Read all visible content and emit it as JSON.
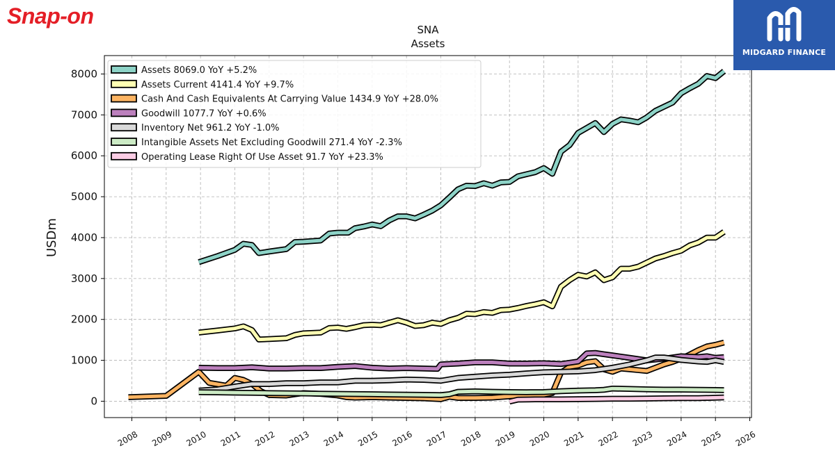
{
  "brand": {
    "name": "Snap-on",
    "finance": "MIDGARD FINANCE"
  },
  "colors": {
    "assets": "#8dd3c7",
    "assets_current": "#ffffb3",
    "cash": "#fdb462",
    "goodwill": "#bc80bd",
    "inventory": "#d9d9d9",
    "intangible": "#ccebc5",
    "lease": "#fccde5",
    "brand_bg": "#2a5aad",
    "logo_red": "#e41e26"
  },
  "chart_data": {
    "type": "line",
    "title": "SNA",
    "subtitle": "Assets",
    "xlabel": "",
    "ylabel": "USDm",
    "xlim": [
      2007.2,
      2026.05
    ],
    "ylim": [
      -400,
      8450
    ],
    "yticks": [
      0,
      1000,
      2000,
      3000,
      4000,
      5000,
      6000,
      7000,
      8000
    ],
    "xticks": [
      "2008",
      "2009",
      "2010",
      "2011",
      "2012",
      "2013",
      "2014",
      "2015",
      "2016",
      "2017",
      "2018",
      "2019",
      "2020",
      "2021",
      "2022",
      "2023",
      "2024",
      "2025",
      "2026"
    ],
    "grid": true,
    "legend_position": "top-left",
    "series": [
      {
        "name": "Assets",
        "legend": "Assets  8069.0 YoY +5.2%",
        "color_key": "assets",
        "points": [
          [
            2009.95,
            3400
          ],
          [
            2010.5,
            3550
          ],
          [
            2011.0,
            3700
          ],
          [
            2011.25,
            3850
          ],
          [
            2011.5,
            3820
          ],
          [
            2011.7,
            3620
          ],
          [
            2012.0,
            3660
          ],
          [
            2012.5,
            3720
          ],
          [
            2012.75,
            3890
          ],
          [
            2013.0,
            3900
          ],
          [
            2013.5,
            3930
          ],
          [
            2013.75,
            4100
          ],
          [
            2014.0,
            4120
          ],
          [
            2014.3,
            4120
          ],
          [
            2014.5,
            4230
          ],
          [
            2014.75,
            4270
          ],
          [
            2015.0,
            4320
          ],
          [
            2015.25,
            4280
          ],
          [
            2015.5,
            4420
          ],
          [
            2015.75,
            4520
          ],
          [
            2016.0,
            4520
          ],
          [
            2016.25,
            4470
          ],
          [
            2016.5,
            4560
          ],
          [
            2016.75,
            4660
          ],
          [
            2017.0,
            4790
          ],
          [
            2017.25,
            4980
          ],
          [
            2017.5,
            5180
          ],
          [
            2017.75,
            5270
          ],
          [
            2018.0,
            5260
          ],
          [
            2018.25,
            5330
          ],
          [
            2018.5,
            5270
          ],
          [
            2018.75,
            5350
          ],
          [
            2019.0,
            5360
          ],
          [
            2019.25,
            5500
          ],
          [
            2019.5,
            5550
          ],
          [
            2019.75,
            5600
          ],
          [
            2020.0,
            5700
          ],
          [
            2020.25,
            5560
          ],
          [
            2020.5,
            6100
          ],
          [
            2020.75,
            6260
          ],
          [
            2021.0,
            6560
          ],
          [
            2021.25,
            6680
          ],
          [
            2021.5,
            6800
          ],
          [
            2021.75,
            6580
          ],
          [
            2022.0,
            6780
          ],
          [
            2022.25,
            6890
          ],
          [
            2022.5,
            6860
          ],
          [
            2022.75,
            6820
          ],
          [
            2023.0,
            6940
          ],
          [
            2023.25,
            7100
          ],
          [
            2023.5,
            7200
          ],
          [
            2023.75,
            7300
          ],
          [
            2024.0,
            7530
          ],
          [
            2024.25,
            7650
          ],
          [
            2024.5,
            7760
          ],
          [
            2024.75,
            7950
          ],
          [
            2025.0,
            7900
          ],
          [
            2025.25,
            8069
          ]
        ]
      },
      {
        "name": "Assets Current",
        "legend": "Assets Current  4141.4 YoY +9.7%",
        "color_key": "assets_current",
        "points": [
          [
            2009.95,
            1680
          ],
          [
            2010.5,
            1730
          ],
          [
            2011.0,
            1780
          ],
          [
            2011.25,
            1830
          ],
          [
            2011.5,
            1740
          ],
          [
            2011.7,
            1510
          ],
          [
            2012.0,
            1520
          ],
          [
            2012.5,
            1540
          ],
          [
            2012.75,
            1620
          ],
          [
            2013.0,
            1660
          ],
          [
            2013.5,
            1680
          ],
          [
            2013.75,
            1790
          ],
          [
            2014.0,
            1800
          ],
          [
            2014.25,
            1770
          ],
          [
            2014.5,
            1810
          ],
          [
            2014.75,
            1860
          ],
          [
            2015.0,
            1870
          ],
          [
            2015.25,
            1860
          ],
          [
            2015.5,
            1920
          ],
          [
            2015.75,
            1980
          ],
          [
            2016.0,
            1920
          ],
          [
            2016.25,
            1840
          ],
          [
            2016.5,
            1860
          ],
          [
            2016.75,
            1920
          ],
          [
            2017.0,
            1890
          ],
          [
            2017.25,
            1980
          ],
          [
            2017.5,
            2040
          ],
          [
            2017.75,
            2140
          ],
          [
            2018.0,
            2130
          ],
          [
            2018.25,
            2180
          ],
          [
            2018.5,
            2160
          ],
          [
            2018.75,
            2230
          ],
          [
            2019.0,
            2240
          ],
          [
            2019.25,
            2280
          ],
          [
            2019.5,
            2330
          ],
          [
            2019.75,
            2370
          ],
          [
            2020.0,
            2420
          ],
          [
            2020.25,
            2320
          ],
          [
            2020.5,
            2800
          ],
          [
            2020.75,
            2960
          ],
          [
            2021.0,
            3090
          ],
          [
            2021.25,
            3050
          ],
          [
            2021.5,
            3150
          ],
          [
            2021.75,
            2960
          ],
          [
            2022.0,
            3030
          ],
          [
            2022.25,
            3240
          ],
          [
            2022.5,
            3240
          ],
          [
            2022.75,
            3290
          ],
          [
            2023.0,
            3390
          ],
          [
            2023.25,
            3490
          ],
          [
            2023.5,
            3550
          ],
          [
            2023.75,
            3620
          ],
          [
            2024.0,
            3680
          ],
          [
            2024.25,
            3810
          ],
          [
            2024.5,
            3880
          ],
          [
            2024.75,
            4000
          ],
          [
            2025.0,
            4000
          ],
          [
            2025.25,
            4141
          ]
        ]
      },
      {
        "name": "Cash And Cash Equivalents At Carrying Value",
        "legend": "Cash And Cash Equivalents At Carrying Value  1434.9 YoY +28.0%",
        "color_key": "cash",
        "points": [
          [
            2007.9,
            100
          ],
          [
            2009.0,
            130
          ],
          [
            2009.95,
            720
          ],
          [
            2010.25,
            450
          ],
          [
            2010.75,
            380
          ],
          [
            2011.0,
            570
          ],
          [
            2011.25,
            520
          ],
          [
            2011.5,
            420
          ],
          [
            2011.75,
            250
          ],
          [
            2012.0,
            150
          ],
          [
            2012.5,
            140
          ],
          [
            2013.0,
            200
          ],
          [
            2013.5,
            180
          ],
          [
            2014.0,
            140
          ],
          [
            2014.25,
            100
          ],
          [
            2014.5,
            90
          ],
          [
            2015.0,
            100
          ],
          [
            2015.5,
            90
          ],
          [
            2016.0,
            80
          ],
          [
            2016.5,
            70
          ],
          [
            2017.0,
            50
          ],
          [
            2017.25,
            110
          ],
          [
            2017.5,
            80
          ],
          [
            2018.0,
            80
          ],
          [
            2018.5,
            90
          ],
          [
            2019.0,
            120
          ],
          [
            2019.5,
            150
          ],
          [
            2020.0,
            160
          ],
          [
            2020.25,
            200
          ],
          [
            2020.5,
            700
          ],
          [
            2020.75,
            840
          ],
          [
            2021.0,
            870
          ],
          [
            2021.25,
            950
          ],
          [
            2021.5,
            980
          ],
          [
            2021.75,
            780
          ],
          [
            2022.0,
            720
          ],
          [
            2022.25,
            800
          ],
          [
            2022.5,
            780
          ],
          [
            2022.75,
            760
          ],
          [
            2023.0,
            740
          ],
          [
            2023.25,
            820
          ],
          [
            2023.5,
            900
          ],
          [
            2023.75,
            960
          ],
          [
            2024.0,
            1040
          ],
          [
            2024.25,
            1140
          ],
          [
            2024.5,
            1250
          ],
          [
            2024.75,
            1340
          ],
          [
            2025.0,
            1380
          ],
          [
            2025.25,
            1435
          ]
        ]
      },
      {
        "name": "Goodwill",
        "legend": "Goodwill  1077.7 YoY +0.6%",
        "color_key": "goodwill",
        "points": [
          [
            2009.95,
            820
          ],
          [
            2010.5,
            810
          ],
          [
            2011.0,
            810
          ],
          [
            2011.5,
            830
          ],
          [
            2012.0,
            800
          ],
          [
            2012.5,
            800
          ],
          [
            2013.0,
            810
          ],
          [
            2013.5,
            810
          ],
          [
            2014.0,
            840
          ],
          [
            2014.5,
            860
          ],
          [
            2015.0,
            820
          ],
          [
            2015.5,
            800
          ],
          [
            2016.0,
            810
          ],
          [
            2016.5,
            800
          ],
          [
            2016.9,
            790
          ],
          [
            2017.0,
            900
          ],
          [
            2017.5,
            920
          ],
          [
            2018.0,
            950
          ],
          [
            2018.5,
            950
          ],
          [
            2019.0,
            920
          ],
          [
            2019.5,
            920
          ],
          [
            2020.0,
            930
          ],
          [
            2020.5,
            910
          ],
          [
            2021.0,
            970
          ],
          [
            2021.25,
            1170
          ],
          [
            2021.5,
            1180
          ],
          [
            2021.75,
            1150
          ],
          [
            2022.0,
            1120
          ],
          [
            2022.5,
            1060
          ],
          [
            2023.0,
            1000
          ],
          [
            2023.5,
            1040
          ],
          [
            2024.0,
            1100
          ],
          [
            2024.5,
            1080
          ],
          [
            2024.75,
            1100
          ],
          [
            2025.0,
            1060
          ],
          [
            2025.25,
            1078
          ]
        ]
      },
      {
        "name": "Inventory Net",
        "legend": "Inventory Net  961.2 YoY -1.0%",
        "color_key": "inventory",
        "points": [
          [
            2009.95,
            260
          ],
          [
            2010.5,
            290
          ],
          [
            2011.0,
            360
          ],
          [
            2011.5,
            420
          ],
          [
            2012.0,
            420
          ],
          [
            2012.5,
            440
          ],
          [
            2013.0,
            440
          ],
          [
            2013.5,
            460
          ],
          [
            2014.0,
            460
          ],
          [
            2014.5,
            500
          ],
          [
            2015.0,
            500
          ],
          [
            2015.5,
            510
          ],
          [
            2016.0,
            530
          ],
          [
            2016.5,
            520
          ],
          [
            2017.0,
            500
          ],
          [
            2017.5,
            570
          ],
          [
            2018.0,
            600
          ],
          [
            2018.5,
            630
          ],
          [
            2019.0,
            650
          ],
          [
            2019.5,
            680
          ],
          [
            2020.0,
            710
          ],
          [
            2020.5,
            720
          ],
          [
            2021.0,
            730
          ],
          [
            2021.5,
            760
          ],
          [
            2022.0,
            820
          ],
          [
            2022.5,
            900
          ],
          [
            2023.0,
            1000
          ],
          [
            2023.25,
            1070
          ],
          [
            2023.5,
            1070
          ],
          [
            2024.0,
            1010
          ],
          [
            2024.5,
            970
          ],
          [
            2024.75,
            960
          ],
          [
            2025.0,
            1000
          ],
          [
            2025.25,
            961
          ]
        ]
      },
      {
        "name": "Intangible Assets Net Excluding Goodwill",
        "legend": "Intangible Assets Net Excluding Goodwill  271.4 YoY -2.3%",
        "color_key": "intangible",
        "points": [
          [
            2009.95,
            220
          ],
          [
            2010.5,
            215
          ],
          [
            2011.0,
            210
          ],
          [
            2011.5,
            205
          ],
          [
            2012.0,
            200
          ],
          [
            2012.5,
            195
          ],
          [
            2013.0,
            190
          ],
          [
            2013.5,
            185
          ],
          [
            2014.0,
            180
          ],
          [
            2014.5,
            175
          ],
          [
            2015.0,
            170
          ],
          [
            2015.5,
            165
          ],
          [
            2016.0,
            160
          ],
          [
            2016.5,
            155
          ],
          [
            2017.0,
            150
          ],
          [
            2017.25,
            170
          ],
          [
            2017.5,
            230
          ],
          [
            2018.0,
            240
          ],
          [
            2018.5,
            230
          ],
          [
            2019.0,
            225
          ],
          [
            2019.5,
            220
          ],
          [
            2020.0,
            225
          ],
          [
            2020.5,
            245
          ],
          [
            2021.0,
            260
          ],
          [
            2021.5,
            270
          ],
          [
            2021.75,
            280
          ],
          [
            2022.0,
            310
          ],
          [
            2022.5,
            300
          ],
          [
            2023.0,
            290
          ],
          [
            2023.5,
            285
          ],
          [
            2024.0,
            285
          ],
          [
            2024.5,
            280
          ],
          [
            2025.0,
            275
          ],
          [
            2025.25,
            271
          ]
        ]
      },
      {
        "name": "Operating Lease Right Of Use Asset",
        "legend": "Operating Lease Right Of Use Asset  91.7 YoY +23.3%",
        "color_key": "lease",
        "points": [
          [
            2019.0,
            -10
          ],
          [
            2019.25,
            40
          ],
          [
            2019.75,
            45
          ],
          [
            2020.0,
            45
          ],
          [
            2020.5,
            45
          ],
          [
            2021.0,
            50
          ],
          [
            2021.5,
            55
          ],
          [
            2022.0,
            60
          ],
          [
            2022.5,
            60
          ],
          [
            2023.0,
            65
          ],
          [
            2023.5,
            70
          ],
          [
            2024.0,
            75
          ],
          [
            2024.5,
            75
          ],
          [
            2025.0,
            85
          ],
          [
            2025.25,
            92
          ]
        ]
      }
    ]
  }
}
